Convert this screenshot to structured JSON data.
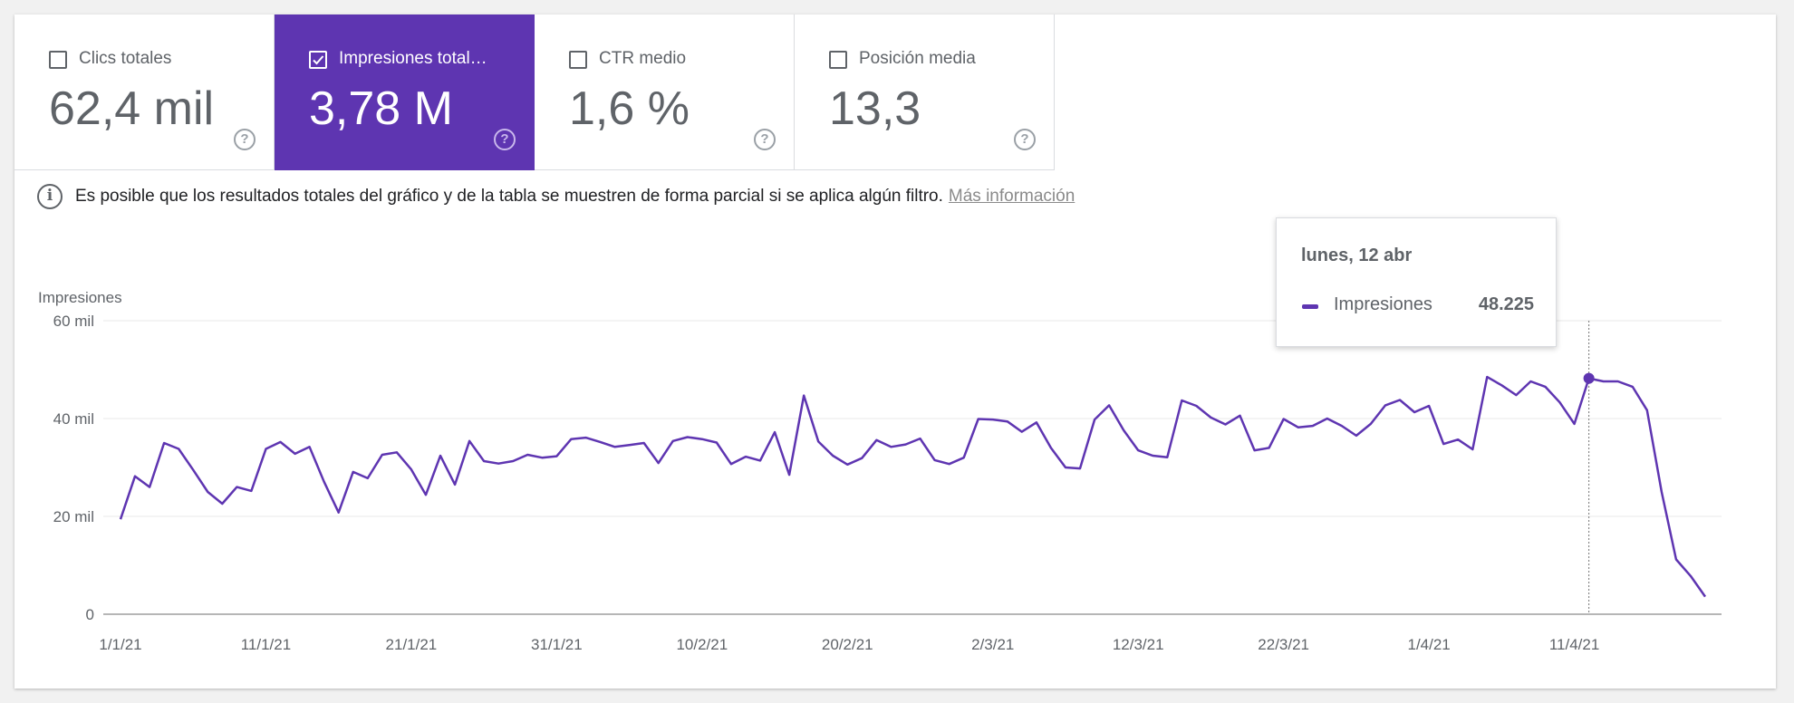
{
  "metrics": [
    {
      "label": "Clics totales",
      "value": "62,4 mil",
      "checked": false
    },
    {
      "label": "Impresiones total…",
      "value": "3,78 M",
      "checked": true
    },
    {
      "label": "CTR medio",
      "value": "1,6 %",
      "checked": false
    },
    {
      "label": "Posición media",
      "value": "13,3",
      "checked": false
    }
  ],
  "help_glyph": "?",
  "info": {
    "icon": "info-icon",
    "text": "Es posible que los resultados totales del gráfico y de la tabla se muestren de forma parcial si se aplica algún filtro.",
    "link": "Más información"
  },
  "tooltip": {
    "date": "lunes, 12 abr",
    "series": "Impresiones",
    "value": "48.225"
  },
  "colors": {
    "accent": "#5e35b1",
    "grid": "#e8e8e8",
    "text": "#5f6368"
  },
  "chart_data": {
    "type": "line",
    "ylabel": "Impresiones",
    "xlabel": "",
    "x_start": "1/1/21",
    "x_end": "20/4/21",
    "x_ticks": [
      "1/1/21",
      "11/1/21",
      "21/1/21",
      "31/1/21",
      "10/2/21",
      "20/2/21",
      "2/3/21",
      "12/3/21",
      "22/3/21",
      "1/4/21",
      "11/4/21"
    ],
    "y_ticks": [
      0,
      20000,
      40000,
      60000
    ],
    "y_tick_labels": [
      "0",
      "20 mil",
      "40 mil",
      "60 mil"
    ],
    "ylim": [
      0,
      60000
    ],
    "grid": true,
    "highlight_index": 101,
    "series": [
      {
        "name": "Impresiones",
        "values": [
          19400,
          28200,
          26000,
          35000,
          33800,
          29500,
          25000,
          22600,
          26000,
          25200,
          33800,
          35200,
          32800,
          34200,
          27100,
          20800,
          29100,
          27800,
          32600,
          33100,
          29600,
          24400,
          32400,
          26500,
          35400,
          31300,
          30800,
          31300,
          32600,
          32000,
          32300,
          35800,
          36100,
          35200,
          34200,
          34600,
          35000,
          30900,
          35400,
          36200,
          35800,
          35100,
          30700,
          32200,
          31400,
          37200,
          28500,
          44700,
          35300,
          32400,
          30600,
          31900,
          35600,
          34200,
          34700,
          35900,
          31500,
          30700,
          32000,
          39900,
          39800,
          39400,
          37300,
          39200,
          34000,
          30000,
          29800,
          39800,
          42700,
          37600,
          33500,
          32400,
          32100,
          43700,
          42600,
          40200,
          38800,
          40600,
          33500,
          34000,
          39900,
          38200,
          38500,
          40000,
          38500,
          36500,
          38900,
          42700,
          43800,
          41300,
          42600,
          34800,
          35700,
          33700,
          48500,
          46800,
          44800,
          47600,
          46500,
          43300,
          38900,
          48225,
          47600,
          47600,
          46500,
          41700,
          25000,
          11200,
          7800,
          3600
        ]
      }
    ]
  }
}
